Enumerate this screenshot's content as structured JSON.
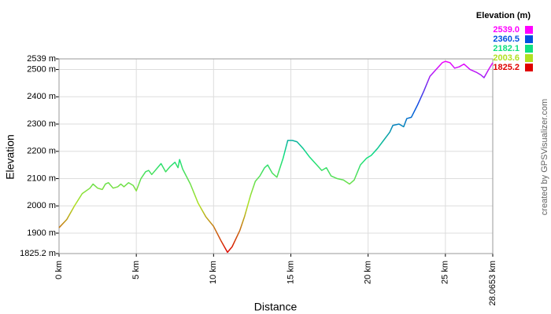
{
  "chart_data": {
    "type": "line",
    "x_label": "Distance",
    "y_label": "Elevation",
    "credit": "created by GPSVisualizer.com",
    "grid": true,
    "xlim": [
      0,
      28.0653
    ],
    "ylim": [
      1825.2,
      2539
    ],
    "xticks": [
      {
        "value": 0,
        "label": "0 km"
      },
      {
        "value": 5,
        "label": "5 km"
      },
      {
        "value": 10,
        "label": "10 km"
      },
      {
        "value": 15,
        "label": "15 km"
      },
      {
        "value": 20,
        "label": "20 km"
      },
      {
        "value": 25,
        "label": "25 km"
      },
      {
        "value": 28.0653,
        "label": "28.0653 km"
      }
    ],
    "yticks": [
      {
        "value": 1825.2,
        "label": "1825.2 m"
      },
      {
        "value": 1900,
        "label": "1900 m"
      },
      {
        "value": 2000,
        "label": "2000 m"
      },
      {
        "value": 2100,
        "label": "2100 m"
      },
      {
        "value": 2200,
        "label": "2200 m"
      },
      {
        "value": 2300,
        "label": "2300 m"
      },
      {
        "value": 2400,
        "label": "2400 m"
      },
      {
        "value": 2500,
        "label": "2500 m"
      },
      {
        "value": 2539,
        "label": "2539 m"
      }
    ],
    "color_scale": {
      "title": "Elevation (m)",
      "stops": [
        {
          "value": 2539,
          "label": "2539.0",
          "color": "#ff00ff"
        },
        {
          "value": 2360.5,
          "label": "2360.5",
          "color": "#0050e0"
        },
        {
          "value": 2182.1,
          "label": "2182.1",
          "color": "#10e080"
        },
        {
          "value": 2003.6,
          "label": "2003.6",
          "color": "#b0e020"
        },
        {
          "value": 1825.2,
          "label": "1825.2",
          "color": "#e00000"
        }
      ]
    },
    "x": [
      0,
      0.5,
      1,
      1.5,
      2,
      2.2,
      2.5,
      2.8,
      3,
      3.2,
      3.5,
      3.8,
      4,
      4.2,
      4.5,
      4.8,
      5,
      5.3,
      5.6,
      5.8,
      6,
      6.3,
      6.6,
      6.9,
      7.2,
      7.5,
      7.7,
      7.8,
      8,
      8.5,
      9,
      9.5,
      10,
      10.5,
      10.9,
      11.2,
      11.7,
      12,
      12.4,
      12.7,
      13,
      13.3,
      13.5,
      13.8,
      14.1,
      14.5,
      14.8,
      15.1,
      15.4,
      15.8,
      16.2,
      16.6,
      17,
      17.3,
      17.6,
      18,
      18.4,
      18.8,
      19.1,
      19.5,
      19.9,
      20.2,
      20.6,
      21,
      21.4,
      21.6,
      22,
      22.3,
      22.5,
      22.8,
      23.2,
      23.6,
      24,
      24.4,
      24.8,
      25,
      25.3,
      25.6,
      25.9,
      26.2,
      26.6,
      27,
      27.3,
      27.5,
      27.8,
      28.0653
    ],
    "series": [
      {
        "values": [
          1920,
          1950,
          2000,
          2045,
          2065,
          2080,
          2065,
          2060,
          2080,
          2085,
          2065,
          2070,
          2080,
          2070,
          2085,
          2075,
          2055,
          2100,
          2125,
          2130,
          2115,
          2135,
          2155,
          2125,
          2145,
          2160,
          2140,
          2170,
          2135,
          2080,
          2010,
          1960,
          1925,
          1870,
          1830,
          1850,
          1910,
          1960,
          2040,
          2090,
          2110,
          2140,
          2150,
          2120,
          2105,
          2175,
          2240,
          2240,
          2235,
          2210,
          2180,
          2155,
          2130,
          2140,
          2110,
          2100,
          2095,
          2080,
          2095,
          2150,
          2175,
          2185,
          2210,
          2240,
          2270,
          2295,
          2300,
          2290,
          2320,
          2325,
          2370,
          2420,
          2475,
          2500,
          2525,
          2530,
          2525,
          2505,
          2510,
          2520,
          2500,
          2490,
          2480,
          2470,
          2500,
          2525
        ]
      }
    ]
  }
}
